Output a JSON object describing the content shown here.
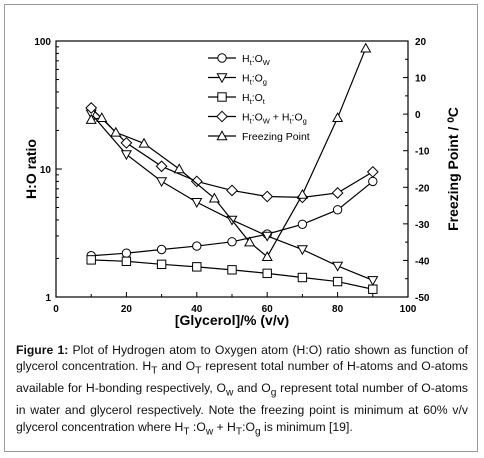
{
  "chart_data": {
    "type": "line",
    "xlabel": "[Glycerol]/% (v/v)",
    "ylabel_left": "H:O ratio",
    "ylabel_right": "Freezing Point / ⁰C",
    "x_ticks": [
      "0",
      "20",
      "40",
      "60",
      "80",
      "100"
    ],
    "x_range": [
      0,
      100
    ],
    "y_left_scale": "log",
    "y_left_range": [
      1,
      100
    ],
    "y_left_ticks": [
      "1",
      "10",
      "100"
    ],
    "y_right_range": [
      -50,
      20
    ],
    "y_right_ticks": [
      "20",
      "10",
      "0",
      "-10",
      "-20",
      "-30",
      "-40",
      "-50"
    ],
    "legend_position": "top-right",
    "series": [
      {
        "name": "Ht:Ow",
        "marker": "circle",
        "axis": "left",
        "x": [
          10,
          20,
          30,
          40,
          50,
          60,
          70,
          80,
          90
        ],
        "values": [
          2.1,
          2.2,
          2.35,
          2.5,
          2.7,
          3.1,
          3.7,
          4.8,
          8.0
        ]
      },
      {
        "name": "Ht:Og",
        "marker": "triangle-down",
        "axis": "left",
        "x": [
          10,
          20,
          30,
          40,
          50,
          60,
          70,
          80,
          90
        ],
        "values": [
          27,
          13,
          8,
          5.5,
          4,
          3,
          2.35,
          1.75,
          1.35
        ]
      },
      {
        "name": "Ht:Ot",
        "marker": "square",
        "axis": "left",
        "x": [
          10,
          20,
          30,
          40,
          50,
          60,
          70,
          80,
          90
        ],
        "values": [
          1.95,
          1.9,
          1.8,
          1.72,
          1.63,
          1.53,
          1.42,
          1.32,
          1.15
        ]
      },
      {
        "name": "Ht:Ow + Ht:Og",
        "marker": "diamond",
        "axis": "left",
        "x": [
          10,
          20,
          30,
          40,
          50,
          60,
          70,
          80,
          90
        ],
        "values": [
          30,
          16,
          10.5,
          8,
          6.8,
          6.1,
          6.0,
          6.5,
          9.5
        ]
      },
      {
        "name": "Freezing Point",
        "marker": "triangle-up",
        "axis": "right",
        "x": [
          10,
          13,
          17,
          25,
          35,
          45,
          55,
          60,
          70,
          80,
          88
        ],
        "values": [
          -1.5,
          -1,
          -5,
          -8,
          -15,
          -23,
          -35,
          -39,
          -22,
          -1,
          18
        ]
      }
    ]
  },
  "legend": [
    {
      "main": "H",
      "sub1": "t",
      "mid": ":O",
      "sub2": "W"
    },
    {
      "main": "H",
      "sub1": "t",
      "mid": ":O",
      "sub2": "g"
    },
    {
      "main": "H",
      "sub1": "t",
      "mid": ":O",
      "sub2": "t"
    },
    {
      "main": "H",
      "sub1": "t",
      "mid": ":O",
      "sub2": "W",
      "plus": " + H",
      "sub3": "t",
      "mid2": ":O",
      "sub4": "g"
    },
    {
      "main": "Freezing Point"
    }
  ],
  "caption": {
    "label": "Figure 1:",
    "text": " Plot of Hydrogen atom to Oxygen atom (H:O) ratio shown as function of glycerol concentration. H",
    "s1": "T",
    "t2": " and O",
    "s2": "T",
    "t3": " represent total number of H-atoms and O-atoms available for H-bonding respectively, O",
    "s3": "w",
    "t4": " and O",
    "s4": "g",
    "t5": " represent total number of O-atoms in water and glycerol respectively. Note the freezing point is minimum at 60% v/v glycerol concentration where H",
    "s5": "T",
    "t6": " :O",
    "s6": "w",
    "t7": " + H",
    "s7": "T",
    "t8": ":O",
    "s8": "g",
    "t9": " is minimum [19]."
  }
}
